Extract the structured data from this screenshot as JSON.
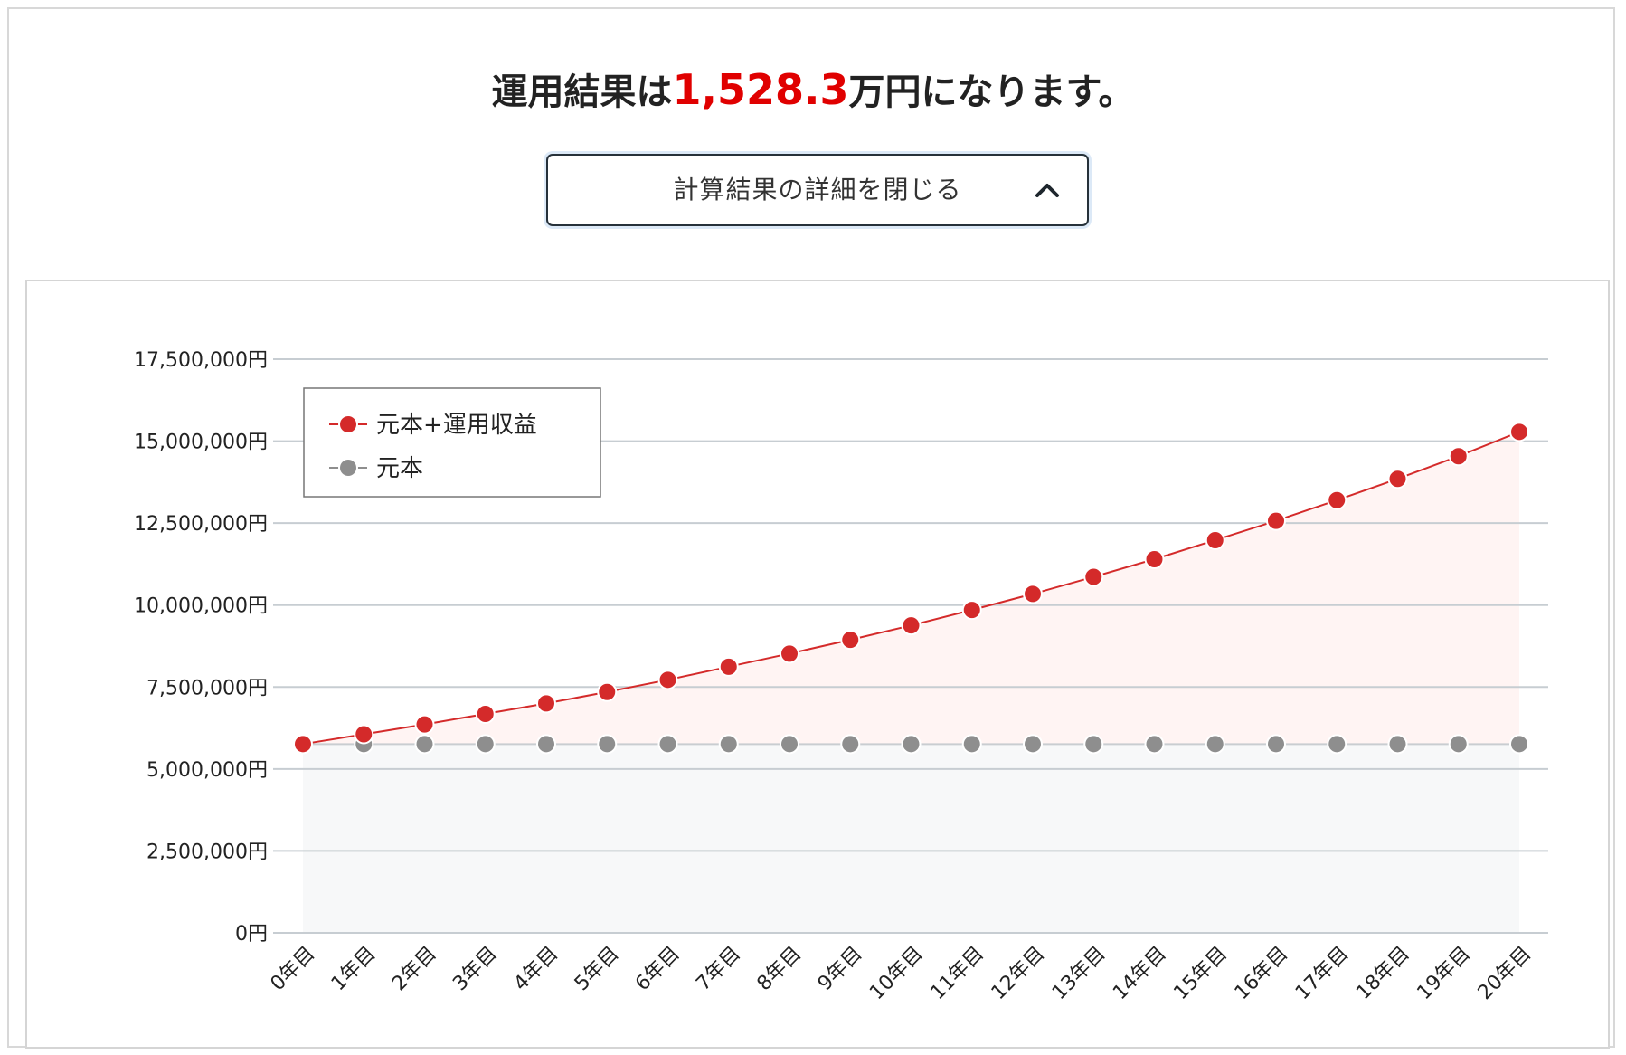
{
  "result": {
    "prefix": "運用結果は",
    "value": "1,528.3",
    "suffix": "万円になります。",
    "value_color": "#e00000"
  },
  "toggle": {
    "label": "計算結果の詳細を閉じる",
    "icon": "chevron-up-icon"
  },
  "chart_data": {
    "type": "area",
    "categories": [
      "0年目",
      "1年目",
      "2年目",
      "3年目",
      "4年目",
      "5年目",
      "6年目",
      "7年目",
      "8年目",
      "9年目",
      "10年目",
      "11年目",
      "12年目",
      "13年目",
      "14年目",
      "15年目",
      "16年目",
      "17年目",
      "18年目",
      "19年目",
      "20年目"
    ],
    "series": [
      {
        "name": "元本+運用収益",
        "color": "#d42a2a",
        "fill": "#fff4f3",
        "values": [
          5760000,
          6060000,
          6360000,
          6680000,
          7000000,
          7350000,
          7720000,
          8120000,
          8520000,
          8940000,
          9380000,
          9850000,
          10340000,
          10860000,
          11400000,
          11980000,
          12570000,
          13200000,
          13850000,
          14540000,
          15283000
        ]
      },
      {
        "name": "元本",
        "color": "#8e8e8e",
        "fill": "#f7f8f9",
        "values": [
          5760000,
          5760000,
          5760000,
          5760000,
          5760000,
          5760000,
          5760000,
          5760000,
          5760000,
          5760000,
          5760000,
          5760000,
          5760000,
          5760000,
          5760000,
          5760000,
          5760000,
          5760000,
          5760000,
          5760000,
          5760000
        ]
      }
    ],
    "yticks": [
      0,
      2500000,
      5000000,
      7500000,
      10000000,
      12500000,
      15000000,
      17500000
    ],
    "ytick_labels": [
      "0円",
      "2,500,000円",
      "5,000,000円",
      "7,500,000円",
      "10,000,000円",
      "12,500,000円",
      "15,000,000円",
      "17,500,000円"
    ],
    "ylim": [
      0,
      17500000
    ],
    "xlabel": "",
    "ylabel": "",
    "grid": true,
    "legend_position": "top-left"
  }
}
